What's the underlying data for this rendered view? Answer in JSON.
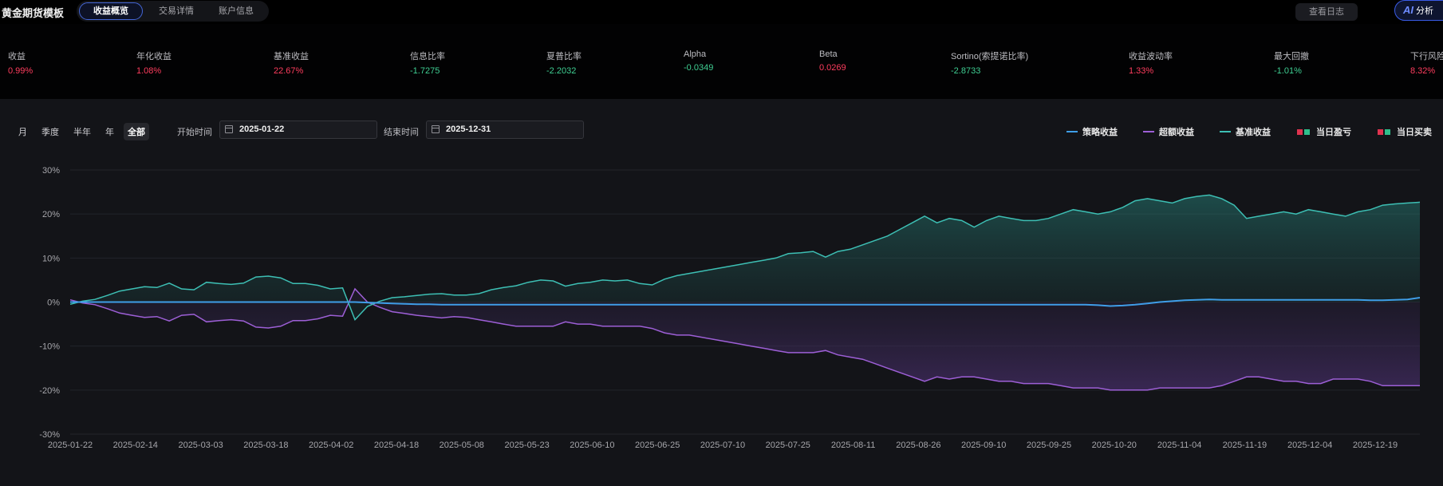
{
  "app": {
    "title": "黄金期货模板"
  },
  "tabs": [
    {
      "label": "收益概览",
      "active": true
    },
    {
      "label": "交易详情",
      "active": false
    },
    {
      "label": "账户信息",
      "active": false
    }
  ],
  "header": {
    "log_button": "查看日志",
    "ai_button": "分析",
    "ai_icon": "AI"
  },
  "metrics": [
    {
      "label": "收益",
      "value": "0.99%",
      "tone": "red"
    },
    {
      "label": "年化收益",
      "value": "1.08%",
      "tone": "red"
    },
    {
      "label": "基准收益",
      "value": "22.67%",
      "tone": "red"
    },
    {
      "label": "信息比率",
      "value": "-1.7275",
      "tone": "green"
    },
    {
      "label": "夏普比率",
      "value": "-2.2032",
      "tone": "green"
    },
    {
      "label": "Alpha",
      "value": "-0.0349",
      "tone": "green"
    },
    {
      "label": "Beta",
      "value": "0.0269",
      "tone": "red"
    },
    {
      "label": "Sortino(索提诺比率)",
      "value": "-2.8733",
      "tone": "green"
    },
    {
      "label": "收益波动率",
      "value": "1.33%",
      "tone": "red"
    },
    {
      "label": "最大回撤",
      "value": "-1.01%",
      "tone": "green"
    },
    {
      "label": "下行风险",
      "value": "8.32%",
      "tone": "red"
    }
  ],
  "controls": {
    "periods": [
      {
        "label": "月",
        "active": false
      },
      {
        "label": "季度",
        "active": false
      },
      {
        "label": "半年",
        "active": false
      },
      {
        "label": "年",
        "active": false
      },
      {
        "label": "全部",
        "active": true
      }
    ],
    "start_label": "开始时间",
    "start_value": "2025-01-22",
    "end_label": "结束时间",
    "end_value": "2025-12-31"
  },
  "legend": [
    {
      "label": "策略收益",
      "kind": "line",
      "colors": [
        "#3f9ee8"
      ]
    },
    {
      "label": "超额收益",
      "kind": "line",
      "colors": [
        "#9d5fd6"
      ]
    },
    {
      "label": "基准收益",
      "kind": "line",
      "colors": [
        "#3dbfb4"
      ]
    },
    {
      "label": "当日盈亏",
      "kind": "squares",
      "colors": [
        "#e0334f",
        "#2fbf8b"
      ]
    },
    {
      "label": "当日买卖",
      "kind": "squares",
      "colors": [
        "#e0334f",
        "#2fbf8b"
      ]
    }
  ],
  "chart_data": {
    "type": "line",
    "ylim": [
      -30,
      30
    ],
    "y_ticks": [
      "30%",
      "20%",
      "10%",
      "0%",
      "-10%",
      "-20%",
      "-30%"
    ],
    "x_ticks": [
      "2025-01-22",
      "2025-02-14",
      "2025-03-03",
      "2025-03-18",
      "2025-04-02",
      "2025-04-18",
      "2025-05-08",
      "2025-05-23",
      "2025-06-10",
      "2025-06-25",
      "2025-07-10",
      "2025-07-25",
      "2025-08-11",
      "2025-08-26",
      "2025-09-10",
      "2025-09-25",
      "2025-10-20",
      "2025-11-04",
      "2025-11-19",
      "2025-12-04",
      "2025-12-19"
    ],
    "grid": true,
    "series": [
      {
        "name": "基准收益",
        "color": "#3dbfb4",
        "values": [
          -0.5,
          0.2,
          0.6,
          1.5,
          2.5,
          3.0,
          3.5,
          3.3,
          4.3,
          3.0,
          2.8,
          4.5,
          4.2,
          4.0,
          4.3,
          5.7,
          5.9,
          5.5,
          4.2,
          4.2,
          3.8,
          3.0,
          3.2,
          -4.0,
          -1.0,
          0.2,
          1.0,
          1.2,
          1.5,
          1.8,
          1.9,
          1.6,
          1.6,
          1.9,
          2.8,
          3.3,
          3.7,
          4.5,
          5.0,
          4.8,
          3.6,
          4.2,
          4.5,
          5.0,
          4.8,
          5.0,
          4.2,
          3.9,
          5.2,
          6.0,
          6.5,
          7.0,
          7.5,
          8.0,
          8.5,
          9.0,
          9.5,
          10.0,
          11.0,
          11.2,
          11.5,
          10.2,
          11.5,
          12.0,
          13.0,
          14.0,
          15.0,
          16.5,
          18.0,
          19.5,
          18.0,
          19.0,
          18.5,
          17.0,
          18.5,
          19.5,
          19.0,
          18.5,
          18.5,
          19.0,
          20.0,
          21.0,
          20.5,
          20.0,
          20.5,
          21.5,
          23.0,
          23.5,
          23.0,
          22.5,
          23.5,
          24.0,
          24.3,
          23.5,
          22.0,
          19.0,
          19.5,
          20.0,
          20.5,
          20.0,
          21.0,
          20.5,
          20.0,
          19.5,
          20.5,
          21.0,
          22.0,
          22.3,
          22.5,
          22.67
        ]
      },
      {
        "name": "策略收益",
        "color": "#3f9ee8",
        "values": [
          0.0,
          0.0,
          0.0,
          0.0,
          0.0,
          0.0,
          0.0,
          0.0,
          0.0,
          0.0,
          0.0,
          0.0,
          0.0,
          0.0,
          0.0,
          0.0,
          0.0,
          0.0,
          0.0,
          0.0,
          0.0,
          0.0,
          0.0,
          0.0,
          -0.1,
          -0.2,
          -0.3,
          -0.4,
          -0.5,
          -0.5,
          -0.6,
          -0.6,
          -0.6,
          -0.6,
          -0.6,
          -0.6,
          -0.6,
          -0.6,
          -0.6,
          -0.6,
          -0.6,
          -0.6,
          -0.6,
          -0.6,
          -0.6,
          -0.6,
          -0.6,
          -0.6,
          -0.6,
          -0.6,
          -0.6,
          -0.6,
          -0.6,
          -0.6,
          -0.6,
          -0.6,
          -0.6,
          -0.6,
          -0.6,
          -0.6,
          -0.6,
          -0.6,
          -0.6,
          -0.6,
          -0.6,
          -0.6,
          -0.6,
          -0.6,
          -0.6,
          -0.6,
          -0.6,
          -0.6,
          -0.6,
          -0.6,
          -0.6,
          -0.6,
          -0.6,
          -0.6,
          -0.6,
          -0.6,
          -0.6,
          -0.6,
          -0.6,
          -0.7,
          -0.9,
          -0.8,
          -0.6,
          -0.3,
          0.0,
          0.2,
          0.4,
          0.5,
          0.6,
          0.5,
          0.5,
          0.5,
          0.5,
          0.5,
          0.5,
          0.5,
          0.5,
          0.5,
          0.5,
          0.5,
          0.5,
          0.4,
          0.4,
          0.5,
          0.6,
          0.99
        ]
      },
      {
        "name": "超额收益",
        "color": "#9d5fd6",
        "values": [
          0.5,
          -0.2,
          -0.6,
          -1.5,
          -2.5,
          -3.0,
          -3.5,
          -3.3,
          -4.3,
          -3.0,
          -2.8,
          -4.5,
          -4.2,
          -4.0,
          -4.3,
          -5.7,
          -5.9,
          -5.5,
          -4.2,
          -4.2,
          -3.8,
          -3.0,
          -3.2,
          3.0,
          0.0,
          -1.2,
          -2.2,
          -2.6,
          -3.0,
          -3.3,
          -3.6,
          -3.3,
          -3.5,
          -4.0,
          -4.5,
          -5.0,
          -5.5,
          -5.5,
          -5.5,
          -5.5,
          -4.5,
          -5.0,
          -5.0,
          -5.5,
          -5.5,
          -5.5,
          -5.5,
          -6.0,
          -7.0,
          -7.5,
          -7.5,
          -8.0,
          -8.5,
          -9.0,
          -9.5,
          -10.0,
          -10.5,
          -11.0,
          -11.5,
          -11.5,
          -11.5,
          -11.0,
          -12.0,
          -12.5,
          -13.0,
          -14.0,
          -15.0,
          -16.0,
          -17.0,
          -18.0,
          -17.0,
          -17.5,
          -17.0,
          -17.0,
          -17.5,
          -18.0,
          -18.0,
          -18.5,
          -18.5,
          -18.5,
          -19.0,
          -19.5,
          -19.5,
          -19.5,
          -20.0,
          -20.0,
          -20.0,
          -20.0,
          -19.5,
          -19.5,
          -19.5,
          -19.5,
          -19.5,
          -19.0,
          -18.0,
          -17.0,
          -17.0,
          -17.5,
          -18.0,
          -18.0,
          -18.5,
          -18.5,
          -17.5,
          -17.5,
          -17.5,
          -18.0,
          -19.0,
          -19.0,
          -19.0,
          -19.0
        ]
      }
    ]
  }
}
